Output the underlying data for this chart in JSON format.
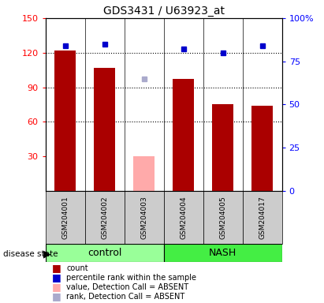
{
  "title": "GDS3431 / U63923_at",
  "samples": [
    "GSM204001",
    "GSM204002",
    "GSM204003",
    "GSM204004",
    "GSM204005",
    "GSM204017"
  ],
  "groups": [
    "control",
    "control",
    "control",
    "NASH",
    "NASH",
    "NASH"
  ],
  "bar_values": [
    122,
    107,
    null,
    97,
    75,
    74
  ],
  "bar_absent_values": [
    null,
    null,
    30,
    null,
    null,
    null
  ],
  "percentile_values": [
    84,
    85,
    null,
    82,
    80,
    84
  ],
  "percentile_absent_values": [
    null,
    null,
    65,
    null,
    null,
    null
  ],
  "bar_color": "#aa0000",
  "bar_absent_color": "#ffaaaa",
  "dot_color": "#0000cc",
  "dot_absent_color": "#aaaacc",
  "ylim_left": [
    0,
    150
  ],
  "ylim_right": [
    0,
    100
  ],
  "yticks_left": [
    30,
    60,
    90,
    120,
    150
  ],
  "yticks_right": [
    0,
    25,
    50,
    75,
    100
  ],
  "ytick_labels_right": [
    "0",
    "25",
    "50",
    "75",
    "100%"
  ],
  "control_color": "#99ff99",
  "nash_color": "#44ee44",
  "background_color": "#cccccc",
  "plot_bg": "#ffffff",
  "dotted_line_values": [
    60,
    90,
    120
  ],
  "bar_width": 0.55,
  "legend": [
    {
      "color": "#aa0000",
      "label": "count"
    },
    {
      "color": "#0000cc",
      "label": "percentile rank within the sample"
    },
    {
      "color": "#ffaaaa",
      "label": "value, Detection Call = ABSENT"
    },
    {
      "color": "#aaaacc",
      "label": "rank, Detection Call = ABSENT"
    }
  ]
}
